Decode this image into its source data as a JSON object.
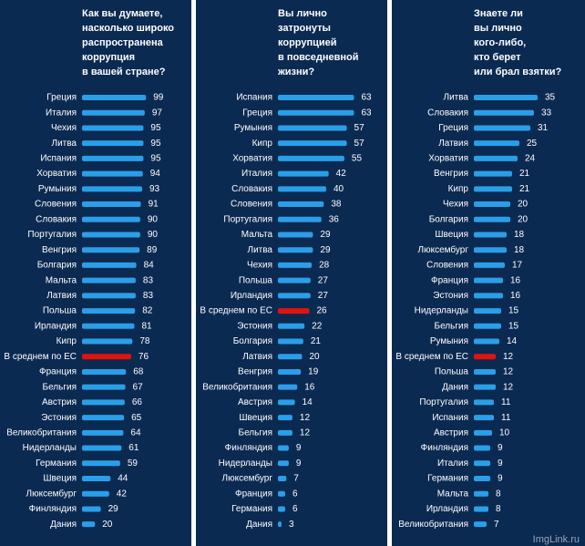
{
  "chart_data": [
    {
      "type": "hbar",
      "title": [
        "Как вы думаете,",
        "насколько широко",
        "распространена",
        "коррупция",
        "в вашей стране?"
      ],
      "categories": [
        "Греция",
        "Италия",
        "Чехия",
        "Литва",
        "Испания",
        "Хорватия",
        "Румыния",
        "Словения",
        "Словакия",
        "Португалия",
        "Венгрия",
        "Болгария",
        "Мальта",
        "Латвия",
        "Польша",
        "Ирландия",
        "Кипр",
        "В среднем  по ЕС",
        "Франция",
        "Бельгия",
        "Австрия",
        "Эстония",
        "Великобритания",
        "Нидерланды",
        "Германия",
        "Швеция",
        "Люксембург",
        "Финляндия",
        "Дания"
      ],
      "values": [
        99,
        97,
        95,
        95,
        95,
        94,
        93,
        91,
        90,
        90,
        89,
        84,
        83,
        83,
        82,
        81,
        78,
        76,
        68,
        67,
        66,
        65,
        64,
        61,
        59,
        44,
        42,
        29,
        20
      ],
      "colors": [
        "#2a9fe8",
        "#2a9fe8",
        "#2a9fe8",
        "#2a9fe8",
        "#2a9fe8",
        "#2a9fe8",
        "#2a9fe8",
        "#2a9fe8",
        "#2a9fe8",
        "#2a9fe8",
        "#2a9fe8",
        "#2a9fe8",
        "#2a9fe8",
        "#2a9fe8",
        "#2a9fe8",
        "#2a9fe8",
        "#2a9fe8",
        "#e0140c",
        "#2a9fe8",
        "#2a9fe8",
        "#2a9fe8",
        "#2a9fe8",
        "#2a9fe8",
        "#2a9fe8",
        "#2a9fe8",
        "#2a9fe8",
        "#2a9fe8",
        "#2a9fe8",
        "#2a9fe8"
      ],
      "xlim": [
        0,
        155
      ]
    },
    {
      "type": "hbar",
      "title": [
        "Вы лично",
        "затронуты",
        "коррупцией",
        "в повседневной",
        "жизни?"
      ],
      "categories": [
        "Испания",
        "Греция",
        "Румыния",
        "Кипр",
        "Хорватия",
        "Италия",
        "Словакия",
        "Словения",
        "Португалия",
        "Мальта",
        "Литва",
        "Чехия",
        "Польша",
        "Ирландия",
        "В среднем  по ЕС",
        "Эстония",
        "Болгария",
        "Латвия",
        "Венгрия",
        "Великобритания",
        "Австрия",
        "Швеция",
        "Бельгия",
        "Финляндия",
        "Нидерланды",
        "Люксембург",
        "Франция",
        "Германия",
        "Дания"
      ],
      "values": [
        63,
        63,
        57,
        57,
        55,
        42,
        40,
        38,
        36,
        29,
        29,
        28,
        27,
        27,
        26,
        22,
        21,
        20,
        19,
        16,
        14,
        12,
        12,
        9,
        9,
        7,
        6,
        6,
        3
      ],
      "colors": [
        "#2a9fe8",
        "#2a9fe8",
        "#2a9fe8",
        "#2a9fe8",
        "#2a9fe8",
        "#2a9fe8",
        "#2a9fe8",
        "#2a9fe8",
        "#2a9fe8",
        "#2a9fe8",
        "#2a9fe8",
        "#2a9fe8",
        "#2a9fe8",
        "#2a9fe8",
        "#e0140c",
        "#2a9fe8",
        "#2a9fe8",
        "#2a9fe8",
        "#2a9fe8",
        "#2a9fe8",
        "#2a9fe8",
        "#2a9fe8",
        "#2a9fe8",
        "#2a9fe8",
        "#2a9fe8",
        "#2a9fe8",
        "#2a9fe8",
        "#2a9fe8",
        "#2a9fe8"
      ],
      "xlim": [
        0,
        83
      ]
    },
    {
      "type": "hbar",
      "title": [
        "Знаете ли",
        "вы лично",
        "кого-либо,",
        "кто берет",
        "или брал взятки?"
      ],
      "categories": [
        "Литва",
        "Словакия",
        "Греция",
        "Латвия",
        "Хорватия",
        "Венгрия",
        "Кипр",
        "Чехия",
        "Болгария",
        "Швеция",
        "Люксембург",
        "Словения",
        "Франция",
        "Эстония",
        "Нидерланды",
        "Бельгия",
        "Румыния",
        "В среднем  по ЕС",
        "Польша",
        "Дания",
        "Португалия",
        "Испания",
        "Австрия",
        "Финляндия",
        "Италия",
        "Германия",
        "Мальта",
        "Ирландия",
        "Великобритания"
      ],
      "values": [
        35,
        33,
        31,
        25,
        24,
        21,
        21,
        20,
        20,
        18,
        18,
        17,
        16,
        16,
        15,
        15,
        14,
        12,
        12,
        12,
        11,
        11,
        10,
        9,
        9,
        9,
        8,
        8,
        7
      ],
      "colors": [
        "#2a9fe8",
        "#2a9fe8",
        "#2a9fe8",
        "#2a9fe8",
        "#2a9fe8",
        "#2a9fe8",
        "#2a9fe8",
        "#2a9fe8",
        "#2a9fe8",
        "#2a9fe8",
        "#2a9fe8",
        "#2a9fe8",
        "#2a9fe8",
        "#2a9fe8",
        "#2a9fe8",
        "#2a9fe8",
        "#2a9fe8",
        "#e0140c",
        "#2a9fe8",
        "#2a9fe8",
        "#2a9fe8",
        "#2a9fe8",
        "#2a9fe8",
        "#2a9fe8",
        "#2a9fe8",
        "#2a9fe8",
        "#2a9fe8",
        "#2a9fe8",
        "#2a9fe8"
      ],
      "xlim": [
        0,
        55
      ]
    }
  ],
  "watermark": "ImgLink.ru"
}
